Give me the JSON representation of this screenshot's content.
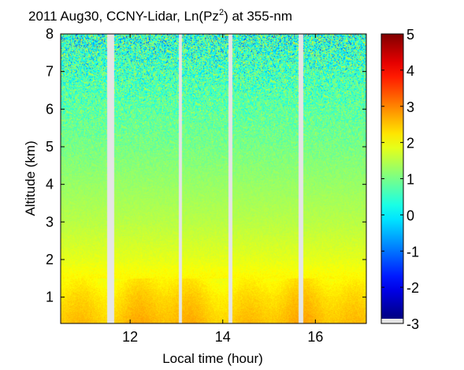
{
  "chart_data": {
    "type": "heatmap",
    "title": {
      "prefix": "2011 Aug30, CCNY-Lidar, Ln(Pz",
      "superscript": "2",
      "suffix": ") at 355-nm"
    },
    "xlabel": "Local time (hour)",
    "ylabel": "Altitude (km)",
    "xlim": [
      10.5,
      17.1
    ],
    "ylim": [
      0.3,
      8.0
    ],
    "xticks": [
      12,
      14,
      16
    ],
    "yticks": [
      1,
      2,
      3,
      4,
      5,
      6,
      7,
      8
    ],
    "data_gaps_hour": [
      [
        11.5,
        11.65
      ],
      [
        13.05,
        13.12
      ],
      [
        14.12,
        14.2
      ],
      [
        15.63,
        15.74
      ]
    ],
    "colorbar": {
      "min": -3,
      "max": 5,
      "ticks": [
        5,
        4,
        3,
        2,
        1,
        0,
        -1,
        -2,
        -3
      ],
      "colormap": "jet",
      "below_range_color": "#e5e5e5"
    },
    "z_profile_by_altitude": [
      {
        "altitude_km": 0.4,
        "value": 2.5
      },
      {
        "altitude_km": 1.0,
        "value": 2.3
      },
      {
        "altitude_km": 2.0,
        "value": 1.8
      },
      {
        "altitude_km": 3.0,
        "value": 1.45
      },
      {
        "altitude_km": 4.0,
        "value": 1.2
      },
      {
        "altitude_km": 5.0,
        "value": 0.95
      },
      {
        "altitude_km": 6.0,
        "value": 0.75
      },
      {
        "altitude_km": 7.0,
        "value": 0.55
      },
      {
        "altitude_km": 8.0,
        "value": 0.35
      }
    ]
  }
}
